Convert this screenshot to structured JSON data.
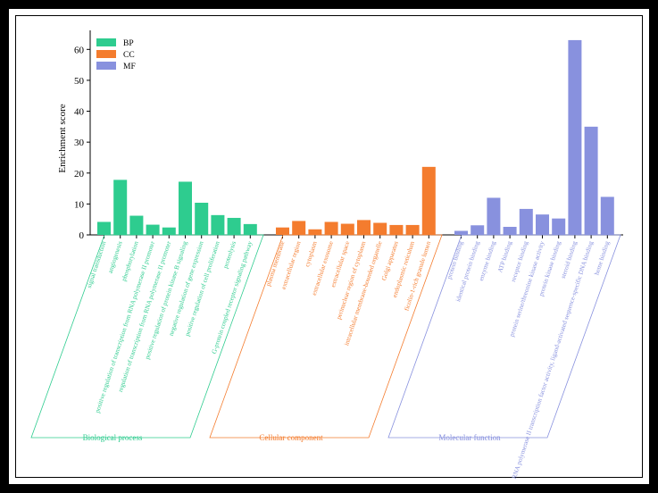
{
  "chart_data": {
    "type": "bar",
    "ylabel": "Enrichment score",
    "xlabel": "",
    "ylim": [
      0,
      65
    ],
    "yticks": [
      0,
      10,
      20,
      30,
      40,
      50,
      60
    ],
    "legend_position": "top-left",
    "series": [
      {
        "name": "BP",
        "color": "#2ecc8f",
        "group_label": "Biological process",
        "categories": [
          "signal transduction",
          "angiogenesis",
          "phosphorylation",
          "positive regulation of transcription from RNA polymerase II promoter",
          "regulation of transcription from RNA polymerase II promoter",
          "positive regulation of protein kinase B signaling",
          "negative regulation of gene expression",
          "positive regulation of cell proliferation",
          "proteolysis",
          "G-protein coupled receptor signaling pathway"
        ],
        "values": [
          4.2,
          17.8,
          6.2,
          3.3,
          2.4,
          17.2,
          10.4,
          6.4,
          5.5,
          3.5
        ]
      },
      {
        "name": "CC",
        "color": "#f47c2e",
        "group_label": "Cellular component",
        "categories": [
          "plasma membrane",
          "extracellular region",
          "cytoplasm",
          "extracellular exosome",
          "extracellular space",
          "perinuclear region of cytoplasm",
          "intracellular membrane-bounded organelle",
          "Golgi apparatus",
          "endoplasmic reticulum",
          "ficolin-1-rich granule lumen"
        ],
        "values": [
          2.4,
          4.5,
          1.8,
          4.2,
          3.6,
          4.8,
          3.9,
          3.2,
          3.2,
          22.0
        ]
      },
      {
        "name": "MF",
        "color": "#8891de",
        "group_label": "Molecular function",
        "categories": [
          "protein binding",
          "identical protein binding",
          "enzyme binding",
          "ATP binding",
          "receptor binding",
          "protein serine/threonine kinase activity",
          "protein kinase binding",
          "steroid binding",
          "RNA polymerase II transcription factor activity, ligand-activated sequence-specific DNA binding",
          "heme binding"
        ],
        "values": [
          1.3,
          3.1,
          12.0,
          2.6,
          8.4,
          6.6,
          5.3,
          63.0,
          35.0,
          12.3
        ]
      }
    ]
  }
}
